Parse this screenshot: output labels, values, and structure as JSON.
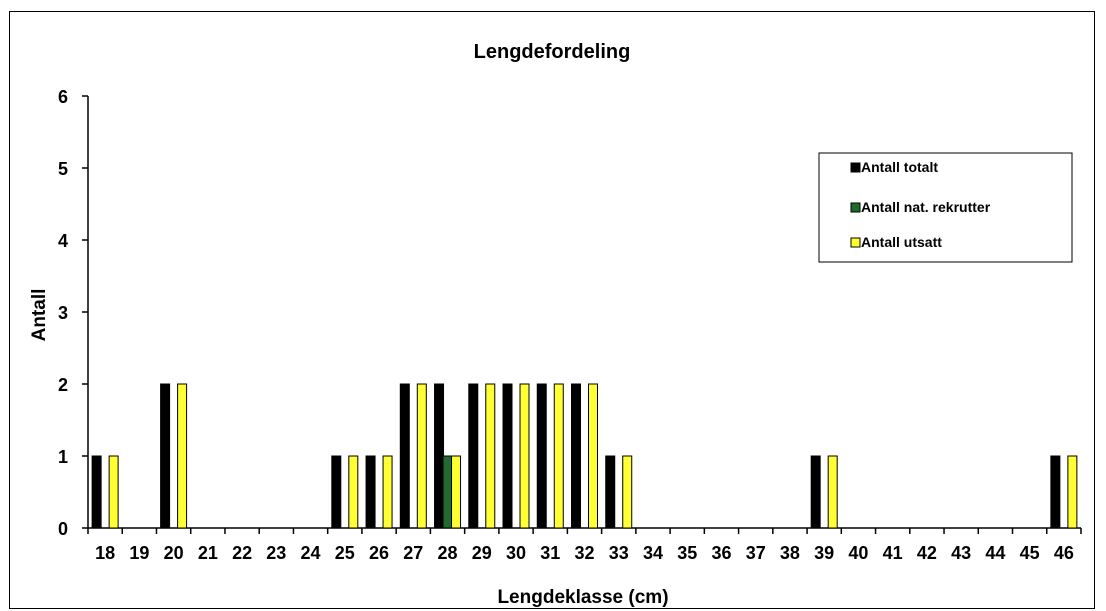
{
  "chart_data": {
    "type": "bar",
    "title": "Lengdefordeling",
    "xlabel": "Lengdeklasse (cm)",
    "ylabel": "Antall",
    "ylim": [
      0,
      6
    ],
    "yticks": [
      "0",
      "1",
      "2",
      "3",
      "4",
      "5",
      "6"
    ],
    "categories": [
      "18",
      "19",
      "20",
      "21",
      "22",
      "23",
      "24",
      "25",
      "26",
      "27",
      "28",
      "29",
      "30",
      "31",
      "32",
      "33",
      "34",
      "35",
      "36",
      "37",
      "38",
      "39",
      "40",
      "41",
      "42",
      "43",
      "44",
      "45",
      "46"
    ],
    "series": [
      {
        "name": "Antall totalt",
        "color": "#000000",
        "values": [
          1,
          0,
          2,
          0,
          0,
          0,
          0,
          1,
          1,
          2,
          2,
          2,
          2,
          2,
          2,
          1,
          0,
          0,
          0,
          0,
          0,
          1,
          0,
          0,
          0,
          0,
          0,
          0,
          1
        ]
      },
      {
        "name": "Antall nat. rekrutter",
        "color": "#1f6b2e",
        "values": [
          0,
          0,
          0,
          0,
          0,
          0,
          0,
          0,
          0,
          0,
          1,
          0,
          0,
          0,
          0,
          0,
          0,
          0,
          0,
          0,
          0,
          0,
          0,
          0,
          0,
          0,
          0,
          0,
          0
        ]
      },
      {
        "name": "Antall utsatt",
        "color": "#ffff33",
        "values": [
          1,
          0,
          2,
          0,
          0,
          0,
          0,
          1,
          1,
          2,
          1,
          2,
          2,
          2,
          2,
          1,
          0,
          0,
          0,
          0,
          0,
          1,
          0,
          0,
          0,
          0,
          0,
          0,
          1
        ]
      }
    ],
    "legend_position": "right",
    "grid": false
  }
}
